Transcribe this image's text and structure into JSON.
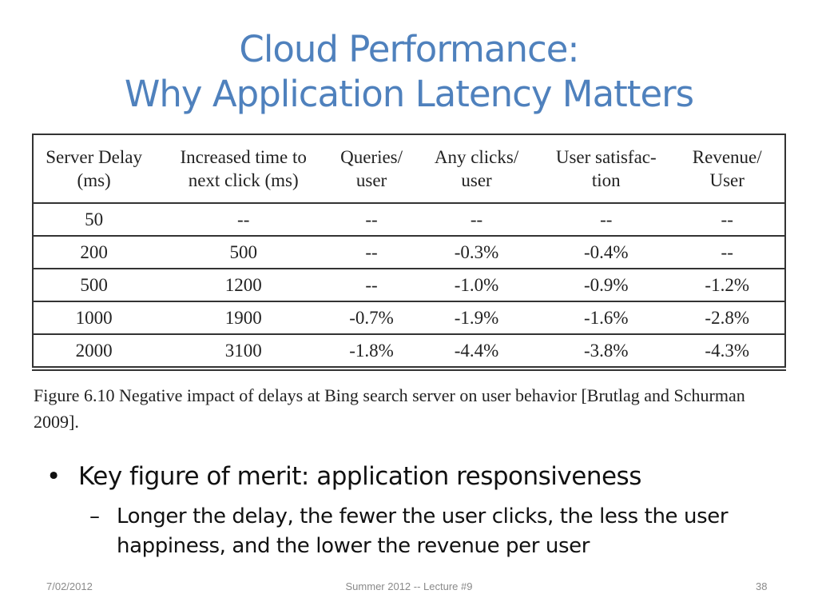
{
  "title": {
    "line1": "Cloud Performance:",
    "line2": "Why Application Latency Matters"
  },
  "table": {
    "headers": [
      "Server Delay\n(ms)",
      "Increased time to\nnext click (ms)",
      "Queries/\nuser",
      "Any clicks/\nuser",
      "User satisfac-\ntion",
      "Revenue/\nUser"
    ],
    "rows": [
      [
        "50",
        "--",
        "--",
        "--",
        "--",
        "--"
      ],
      [
        "200",
        "500",
        "--",
        "-0.3%",
        "-0.4%",
        "--"
      ],
      [
        "500",
        "1200",
        "--",
        "-1.0%",
        "-0.9%",
        "-1.2%"
      ],
      [
        "1000",
        "1900",
        "-0.7%",
        "-1.9%",
        "-1.6%",
        "-2.8%"
      ],
      [
        "2000",
        "3100",
        "-1.8%",
        "-4.4%",
        "-3.8%",
        "-4.3%"
      ]
    ]
  },
  "caption": "Figure 6.10 Negative impact of delays at Bing search server on user behavior [Brutlag and Schurman 2009].",
  "bullet": {
    "marker": "•",
    "text": "Key figure of merit: application responsiveness"
  },
  "subbullet": {
    "marker": "–",
    "text": "Longer the delay, the fewer the user clicks, the less the user happiness, and the lower the revenue per user"
  },
  "footer": {
    "date": "7/02/2012",
    "center": "Summer 2012 -- Lecture #9",
    "page": "38"
  }
}
